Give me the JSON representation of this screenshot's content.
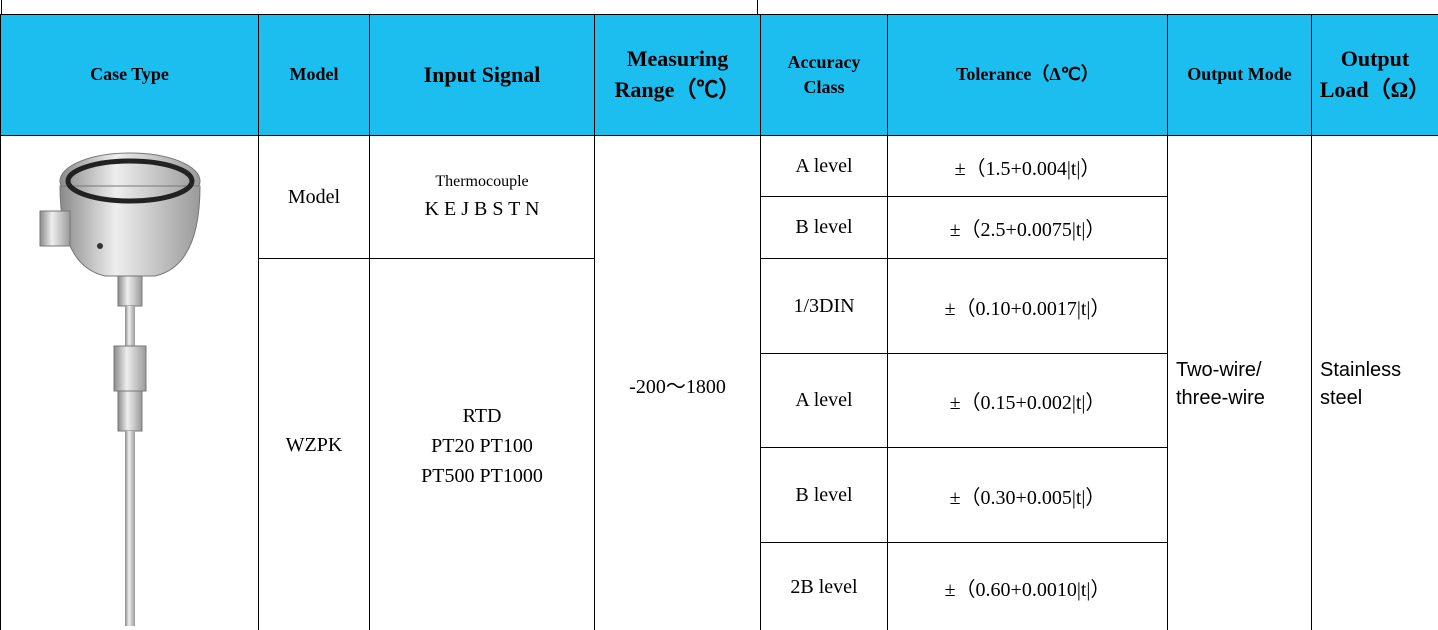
{
  "table": {
    "header": [
      "Case Type",
      "Model",
      "Input Signal",
      "Measuring Range（℃）",
      "Accuracy Class",
      "Tolerance（Δ℃）",
      "Output Mode",
      "Output Load（Ω）"
    ],
    "model_rows": [
      {
        "model": "Model",
        "input_signal": [
          "Thermocouple",
          "K E J B S T N"
        ]
      },
      {
        "model": "WZPK",
        "input_signal": [
          "RTD",
          "PT20 PT100",
          "PT500 PT1000"
        ]
      }
    ],
    "measuring_range": "-200～1800",
    "accuracy": [
      {
        "class": "A level",
        "tolerance": "±（1.5+0.004|t|）"
      },
      {
        "class": "B level",
        "tolerance": "±（2.5+0.0075|t|）"
      },
      {
        "class": "1/3DIN",
        "tolerance": "±（0.10+0.0017|t|）"
      },
      {
        "class": "A level",
        "tolerance": "±（0.15+0.002|t|）"
      },
      {
        "class": "B level",
        "tolerance": "±（0.30+0.005|t|）"
      },
      {
        "class": "2B level",
        "tolerance": "±（0.60+0.0010|t|）"
      }
    ],
    "output_mode": "Two-wire/ three-wire",
    "output_load": "Stainless steel"
  }
}
